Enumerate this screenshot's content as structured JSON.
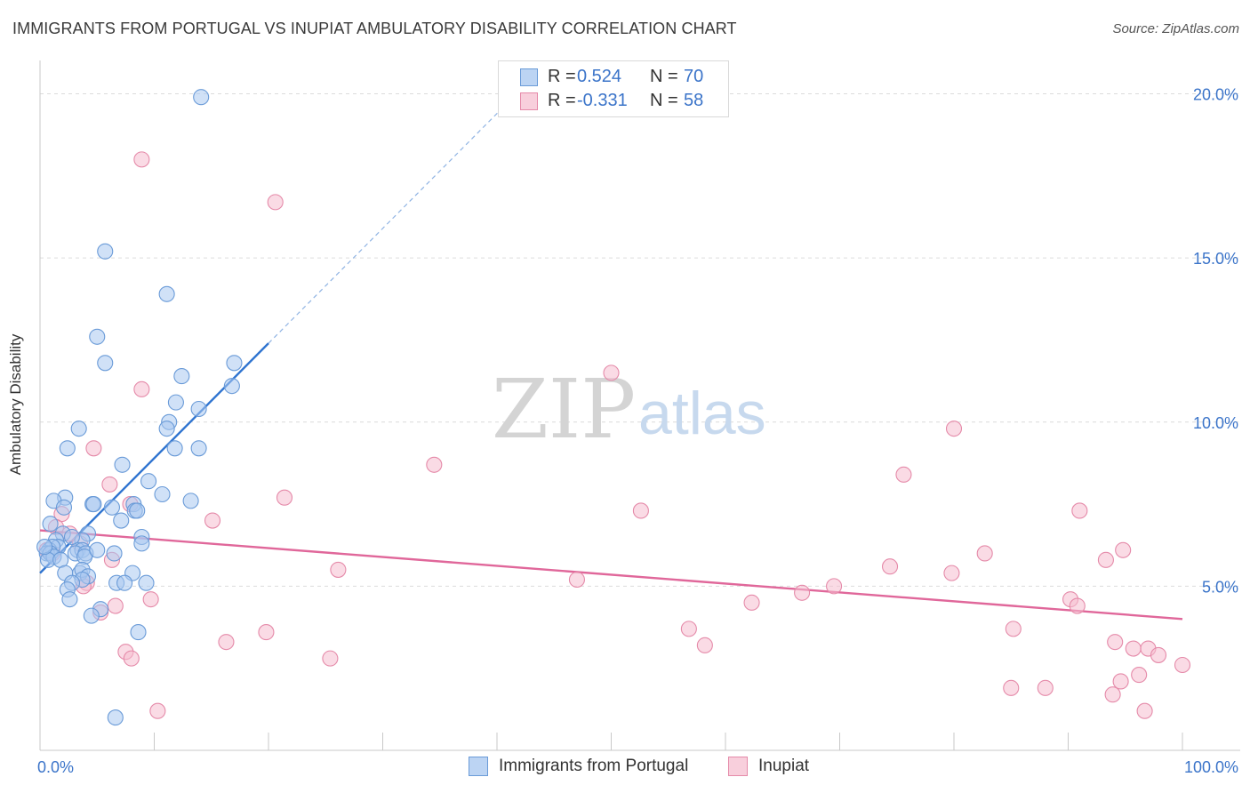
{
  "title": "IMMIGRANTS FROM PORTUGAL VS INUPIAT AMBULATORY DISABILITY CORRELATION CHART",
  "source": "Source: ZipAtlas.com",
  "watermark": {
    "zip": "ZIP",
    "atlas": "atlas"
  },
  "legend_top": {
    "rows": [
      {
        "r_label": "R =",
        "r_value": "0.524",
        "n_label": "N =",
        "n_value": "70"
      },
      {
        "r_label": "R =",
        "r_value": "-0.331",
        "n_label": "N =",
        "n_value": "58"
      }
    ]
  },
  "legend_bottom": {
    "series1": "Immigrants from Portugal",
    "series2": "Inupiat"
  },
  "colors": {
    "blue_fill": "#a9c8f0",
    "blue_stroke": "#6a9bd8",
    "blue_line": "#2f74d0",
    "pink_fill": "#f6bdd0",
    "pink_stroke": "#e58aa9",
    "pink_line": "#e0679a",
    "tick_text": "#3b74c9",
    "grid": "#dcdcdc"
  },
  "chart_data": {
    "type": "scatter",
    "title": "IMMIGRANTS FROM PORTUGAL VS INUPIAT AMBULATORY DISABILITY CORRELATION CHART",
    "xlabel": "",
    "ylabel": "Ambulatory Disability",
    "xlim": [
      0,
      100
    ],
    "ylim": [
      0,
      20.8
    ],
    "x_tick_labels": [
      "0.0%",
      "100.0%"
    ],
    "y_ticks": [
      5,
      10,
      15,
      20
    ],
    "y_tick_labels": [
      "5.0%",
      "10.0%",
      "15.0%",
      "20.0%"
    ],
    "series": [
      {
        "name": "Immigrants from Portugal",
        "R": 0.524,
        "N": 70,
        "trend": {
          "x0": 0,
          "y0": 5.4,
          "x1": 20,
          "y1": 12.4,
          "dash_to_x": 42,
          "dash_to_y": 20.1
        },
        "points": [
          [
            14.1,
            19.9
          ],
          [
            5.7,
            15.2
          ],
          [
            11.1,
            13.9
          ],
          [
            5.0,
            12.6
          ],
          [
            5.7,
            11.8
          ],
          [
            17.0,
            11.8
          ],
          [
            12.4,
            11.4
          ],
          [
            16.8,
            11.1
          ],
          [
            11.9,
            10.6
          ],
          [
            13.9,
            10.4
          ],
          [
            11.3,
            10.0
          ],
          [
            11.1,
            9.8
          ],
          [
            3.4,
            9.8
          ],
          [
            2.4,
            9.2
          ],
          [
            11.8,
            9.2
          ],
          [
            13.9,
            9.2
          ],
          [
            7.2,
            8.7
          ],
          [
            9.5,
            8.2
          ],
          [
            10.7,
            7.8
          ],
          [
            2.2,
            7.7
          ],
          [
            1.2,
            7.6
          ],
          [
            13.2,
            7.6
          ],
          [
            4.6,
            7.5
          ],
          [
            4.7,
            7.5
          ],
          [
            6.3,
            7.4
          ],
          [
            2.1,
            7.4
          ],
          [
            8.2,
            7.5
          ],
          [
            8.3,
            7.3
          ],
          [
            8.5,
            7.3
          ],
          [
            7.1,
            7.0
          ],
          [
            0.9,
            6.9
          ],
          [
            2.0,
            6.6
          ],
          [
            4.2,
            6.6
          ],
          [
            8.9,
            6.5
          ],
          [
            1.4,
            6.4
          ],
          [
            3.7,
            6.4
          ],
          [
            8.9,
            6.3
          ],
          [
            1.6,
            6.2
          ],
          [
            0.8,
            6.1
          ],
          [
            1.1,
            6.2
          ],
          [
            3.3,
            6.1
          ],
          [
            3.7,
            6.1
          ],
          [
            0.6,
            6.0
          ],
          [
            0.9,
            6.0
          ],
          [
            3.1,
            6.0
          ],
          [
            4.0,
            6.0
          ],
          [
            6.5,
            6.0
          ],
          [
            1.2,
            5.9
          ],
          [
            3.9,
            5.9
          ],
          [
            0.7,
            5.8
          ],
          [
            1.8,
            5.8
          ],
          [
            2.2,
            5.4
          ],
          [
            3.5,
            5.4
          ],
          [
            3.7,
            5.5
          ],
          [
            8.1,
            5.4
          ],
          [
            4.2,
            5.3
          ],
          [
            3.7,
            5.2
          ],
          [
            2.8,
            5.1
          ],
          [
            6.7,
            5.1
          ],
          [
            7.4,
            5.1
          ],
          [
            9.3,
            5.1
          ],
          [
            2.4,
            4.9
          ],
          [
            2.6,
            4.6
          ],
          [
            5.3,
            4.3
          ],
          [
            4.5,
            4.1
          ],
          [
            8.6,
            3.6
          ],
          [
            6.6,
            1.0
          ],
          [
            0.4,
            6.2
          ],
          [
            5.0,
            6.1
          ],
          [
            2.8,
            6.5
          ]
        ]
      },
      {
        "name": "Inupiat",
        "R": -0.331,
        "N": 58,
        "trend": {
          "x0": 0,
          "y0": 6.7,
          "x1": 100,
          "y1": 4.0
        },
        "points": [
          [
            8.9,
            18.0
          ],
          [
            20.6,
            16.7
          ],
          [
            50.0,
            11.5
          ],
          [
            8.9,
            11.0
          ],
          [
            80.0,
            9.8
          ],
          [
            4.7,
            9.2
          ],
          [
            34.5,
            8.7
          ],
          [
            75.6,
            8.4
          ],
          [
            6.1,
            8.1
          ],
          [
            21.4,
            7.7
          ],
          [
            7.9,
            7.5
          ],
          [
            52.6,
            7.3
          ],
          [
            91.0,
            7.3
          ],
          [
            1.9,
            7.2
          ],
          [
            15.1,
            7.0
          ],
          [
            1.4,
            6.8
          ],
          [
            3.5,
            6.3
          ],
          [
            94.8,
            6.1
          ],
          [
            0.6,
            6.1
          ],
          [
            82.7,
            6.0
          ],
          [
            6.3,
            5.8
          ],
          [
            93.3,
            5.8
          ],
          [
            74.4,
            5.6
          ],
          [
            26.1,
            5.5
          ],
          [
            79.8,
            5.4
          ],
          [
            47.0,
            5.2
          ],
          [
            4.1,
            5.1
          ],
          [
            3.8,
            5.0
          ],
          [
            69.5,
            5.0
          ],
          [
            66.7,
            4.8
          ],
          [
            90.2,
            4.6
          ],
          [
            9.7,
            4.6
          ],
          [
            62.3,
            4.5
          ],
          [
            90.8,
            4.4
          ],
          [
            6.6,
            4.4
          ],
          [
            5.3,
            4.2
          ],
          [
            85.2,
            3.7
          ],
          [
            56.8,
            3.7
          ],
          [
            19.8,
            3.6
          ],
          [
            16.3,
            3.3
          ],
          [
            94.1,
            3.3
          ],
          [
            58.2,
            3.2
          ],
          [
            95.7,
            3.1
          ],
          [
            97.0,
            3.1
          ],
          [
            97.9,
            2.9
          ],
          [
            7.5,
            3.0
          ],
          [
            8.0,
            2.8
          ],
          [
            25.4,
            2.8
          ],
          [
            100.0,
            2.6
          ],
          [
            96.2,
            2.3
          ],
          [
            94.6,
            2.1
          ],
          [
            85.0,
            1.9
          ],
          [
            88.0,
            1.9
          ],
          [
            93.9,
            1.7
          ],
          [
            10.3,
            1.2
          ],
          [
            96.7,
            1.2
          ],
          [
            2.6,
            6.6
          ],
          [
            1.1,
            6.0
          ]
        ]
      }
    ]
  }
}
